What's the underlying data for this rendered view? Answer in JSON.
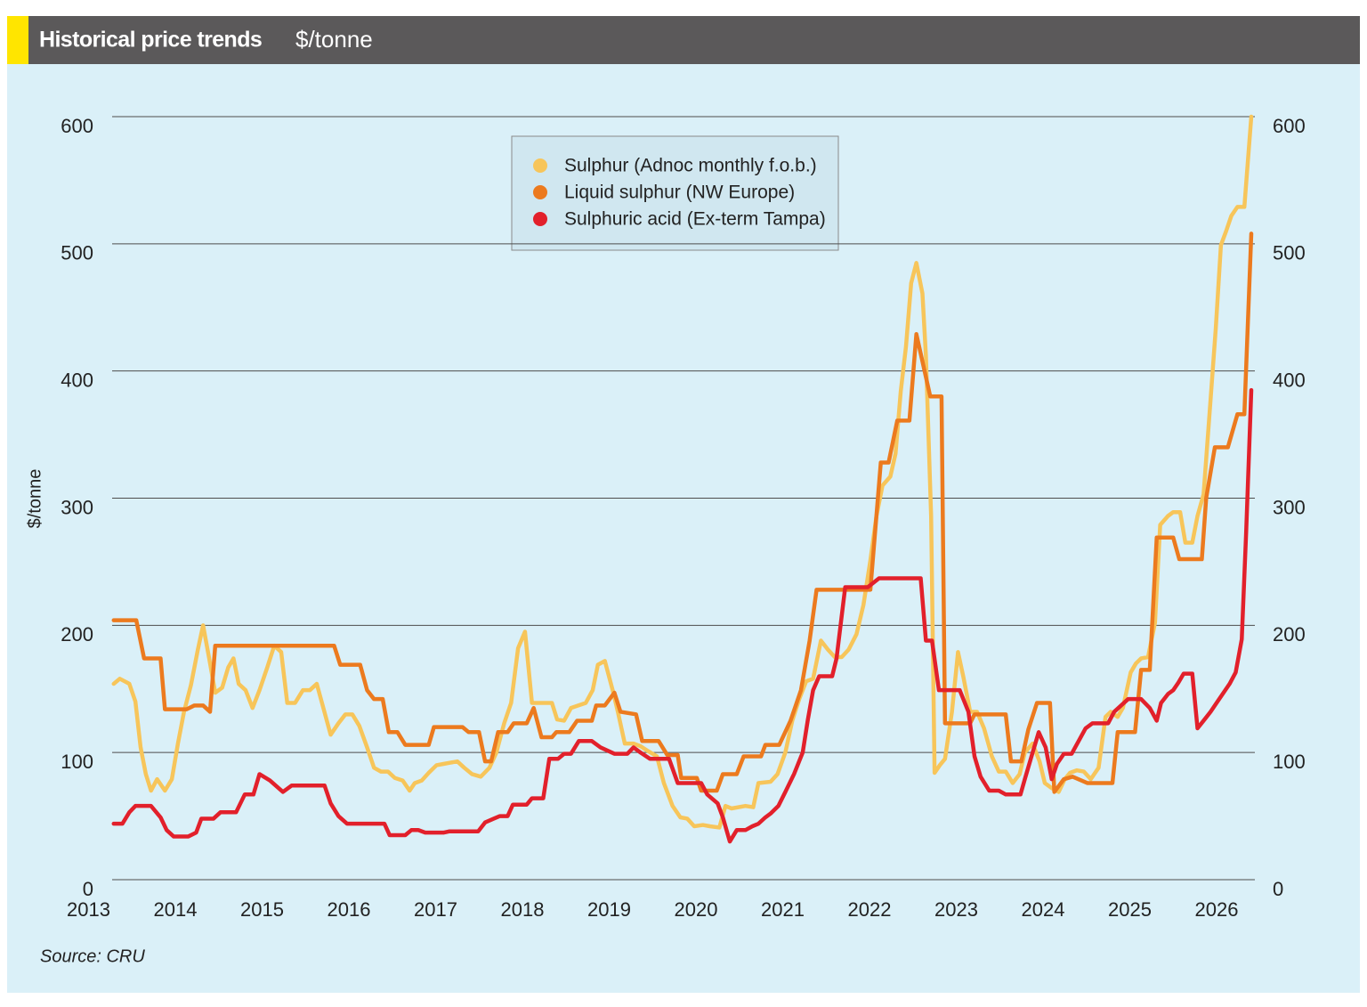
{
  "chart_data": {
    "type": "line",
    "title": "Historical price trends",
    "subtitle": "$/tonne",
    "y_label": "$/tonne",
    "source": "Source: CRU",
    "xlim": [
      2013,
      2026.5
    ],
    "xticks": [
      2013,
      2014,
      2015,
      2016,
      2017,
      2018,
      2019,
      2020,
      2021,
      2022,
      2023,
      2024,
      2025,
      2026
    ],
    "ylim": [
      0,
      600
    ],
    "yticks": [
      0,
      100,
      200,
      300,
      400,
      500,
      600
    ],
    "y2lim": [
      0,
      600
    ],
    "y2ticks": [
      0,
      100,
      200,
      300,
      400,
      500,
      600
    ],
    "grid": true,
    "legend": "top",
    "series": [
      {
        "name": "Sulphur (Adnoc monthly f.o.b.)",
        "color": "#f7c55a",
        "x": [
          2013.29,
          2013.36,
          2013.47,
          2013.54,
          2013.6,
          2013.66,
          2013.72,
          2013.79,
          2013.88,
          2013.96,
          2014.03,
          2014.1,
          2014.18,
          2014.26,
          2014.32,
          2014.39,
          2014.46,
          2014.54,
          2014.61,
          2014.67,
          2014.73,
          2014.81,
          2014.89,
          2014.97,
          2015.06,
          2015.14,
          2015.22,
          2015.29,
          2015.38,
          2015.47,
          2015.55,
          2015.63,
          2015.69,
          2015.79,
          2015.88,
          2015.96,
          2016.04,
          2016.12,
          2016.21,
          2016.29,
          2016.37,
          2016.45,
          2016.53,
          2016.62,
          2016.7,
          2016.76,
          2016.84,
          2016.92,
          2017.01,
          2017.09,
          2017.17,
          2017.25,
          2017.33,
          2017.42,
          2017.52,
          2017.62,
          2017.7,
          2017.79,
          2017.87,
          2017.95,
          2018.03,
          2018.11,
          2018.34,
          2018.4,
          2018.48,
          2018.56,
          2018.73,
          2018.81,
          2018.87,
          2018.95,
          2019.04,
          2019.1,
          2019.18,
          2019.28,
          2019.36,
          2019.45,
          2019.55,
          2019.63,
          2019.73,
          2019.82,
          2019.9,
          2019.98,
          2020.08,
          2020.16,
          2020.27,
          2020.34,
          2020.41,
          2020.57,
          2020.66,
          2020.72,
          2020.86,
          2020.94,
          2021.03,
          2021.11,
          2021.19,
          2021.27,
          2021.35,
          2021.44,
          2021.52,
          2021.6,
          2021.68,
          2021.76,
          2021.85,
          2021.93,
          2022.01,
          2022.08,
          2022.15,
          2022.24,
          2022.3,
          2022.36,
          2022.42,
          2022.48,
          2022.54,
          2022.61,
          2022.65,
          2022.71,
          2022.75,
          2022.81,
          2022.87,
          2022.95,
          2023.02,
          2023.08,
          2023.16,
          2023.24,
          2023.32,
          2023.41,
          2023.49,
          2023.57,
          2023.65,
          2023.73,
          2023.79,
          2023.88,
          2023.96,
          2024.02,
          2024.1,
          2024.18,
          2024.25,
          2024.31,
          2024.39,
          2024.47,
          2024.55,
          2024.64,
          2024.72,
          2024.78,
          2024.86,
          2024.92,
          2025.01,
          2025.07,
          2025.13,
          2025.21,
          2025.29,
          2025.35,
          2025.44,
          2025.5,
          2025.58,
          2025.64,
          2025.72,
          2025.78,
          2025.85,
          2025.93,
          2025.99,
          2026.05,
          2026.11,
          2026.17,
          2026.24,
          2026.32,
          2026.4
        ],
        "values": [
          154,
          158,
          154,
          140,
          104,
          83,
          70,
          79,
          70,
          79,
          107,
          132,
          153,
          181,
          200,
          174,
          147,
          151,
          167,
          174,
          154,
          149,
          135,
          149,
          167,
          184,
          179,
          139,
          139,
          149,
          149,
          154,
          139,
          114,
          123,
          130,
          130,
          121,
          104,
          88,
          85,
          85,
          80,
          78,
          70,
          76,
          78,
          84,
          90,
          91,
          92,
          93,
          88,
          83,
          81,
          88,
          100,
          123,
          139,
          182,
          195,
          139,
          139,
          126,
          125,
          135,
          139,
          149,
          169,
          172,
          149,
          132,
          107,
          107,
          105,
          101,
          97,
          76,
          58,
          49,
          48,
          42,
          43,
          42,
          41,
          58,
          56,
          58,
          57,
          76,
          77,
          83,
          100,
          125,
          142,
          156,
          158,
          188,
          181,
          175,
          175,
          181,
          193,
          216,
          251,
          286,
          310,
          317,
          335,
          384,
          419,
          469,
          485,
          461,
          412,
          286,
          84,
          90,
          95,
          132,
          179,
          160,
          132,
          132,
          119,
          97,
          85,
          85,
          76,
          83,
          100,
          107,
          93,
          76,
          72,
          69,
          79,
          84,
          86,
          85,
          79,
          88,
          128,
          132,
          128,
          135,
          163,
          170,
          174,
          175,
          202,
          279,
          286,
          289,
          289,
          265,
          265,
          286,
          303,
          377,
          433,
          499,
          510,
          522,
          529,
          529,
          600
        ]
      },
      {
        "name": "Liquid sulphur (NW Europe)",
        "color": "#ec7a1e",
        "x": [
          2013.29,
          2013.55,
          2013.64,
          2013.83,
          2013.88,
          2014.13,
          2014.22,
          2014.32,
          2014.4,
          2014.46,
          2015.83,
          2015.9,
          2016.13,
          2016.21,
          2016.29,
          2016.39,
          2016.46,
          2016.56,
          2016.65,
          2016.92,
          2016.98,
          2017.31,
          2017.38,
          2017.5,
          2017.57,
          2017.64,
          2017.72,
          2017.83,
          2017.9,
          2018.05,
          2018.13,
          2018.22,
          2018.34,
          2018.39,
          2018.54,
          2018.63,
          2018.8,
          2018.85,
          2018.95,
          2019.06,
          2019.13,
          2019.31,
          2019.38,
          2019.57,
          2019.67,
          2019.79,
          2019.83,
          2020.01,
          2020.06,
          2020.24,
          2020.31,
          2020.47,
          2020.55,
          2020.75,
          2020.8,
          2020.96,
          2021.09,
          2021.21,
          2021.31,
          2021.39,
          2022.01,
          2022.13,
          2022.22,
          2022.32,
          2022.46,
          2022.54,
          2022.7,
          2022.83,
          2022.87,
          2023.16,
          2023.21,
          2023.57,
          2023.63,
          2023.75,
          2023.83,
          2023.93,
          2024.08,
          2024.13,
          2024.24,
          2024.34,
          2024.51,
          2024.8,
          2024.86,
          2025.06,
          2025.13,
          2025.23,
          2025.31,
          2025.5,
          2025.57,
          2025.83,
          2025.88,
          2025.98,
          2026.13,
          2026.24,
          2026.32,
          2026.4
        ],
        "values": [
          204,
          204,
          174,
          174,
          134,
          134,
          137,
          137,
          132,
          184,
          184,
          169,
          169,
          149,
          142,
          142,
          116,
          116,
          106,
          106,
          120,
          120,
          116,
          116,
          93,
          93,
          116,
          116,
          123,
          123,
          135,
          112,
          112,
          116,
          116,
          125,
          125,
          137,
          137,
          147,
          132,
          130,
          109,
          109,
          98,
          98,
          80,
          80,
          70,
          70,
          83,
          83,
          97,
          97,
          106,
          106,
          125,
          149,
          188,
          228,
          228,
          328,
          328,
          361,
          361,
          429,
          380,
          380,
          123,
          123,
          130,
          130,
          93,
          93,
          118,
          139,
          139,
          69,
          79,
          81,
          76,
          76,
          116,
          116,
          165,
          165,
          269,
          269,
          252,
          252,
          300,
          340,
          340,
          366,
          366,
          508
        ]
      },
      {
        "name": "Sulphuric acid (Ex-term Tampa)",
        "color": "#e2202b",
        "x": [
          2013.29,
          2013.39,
          2013.47,
          2013.54,
          2013.72,
          2013.83,
          2013.9,
          2013.98,
          2014.15,
          2014.24,
          2014.3,
          2014.44,
          2014.52,
          2014.7,
          2014.8,
          2014.9,
          2014.97,
          2015.09,
          2015.24,
          2015.34,
          2015.72,
          2015.79,
          2015.88,
          2015.98,
          2016.41,
          2016.47,
          2016.65,
          2016.72,
          2016.8,
          2016.88,
          2017.09,
          2017.16,
          2017.49,
          2017.57,
          2017.67,
          2017.74,
          2017.83,
          2017.89,
          2018.05,
          2018.11,
          2018.24,
          2018.31,
          2018.41,
          2018.48,
          2018.56,
          2018.65,
          2018.8,
          2018.9,
          2019.06,
          2019.21,
          2019.28,
          2019.36,
          2019.47,
          2019.69,
          2019.79,
          2020.06,
          2020.13,
          2020.25,
          2020.31,
          2020.39,
          2020.47,
          2020.57,
          2020.65,
          2020.72,
          2020.8,
          2020.86,
          2020.95,
          2021.03,
          2021.13,
          2021.23,
          2021.29,
          2021.35,
          2021.42,
          2021.57,
          2021.62,
          2021.72,
          2021.98,
          2022.11,
          2022.59,
          2022.65,
          2022.72,
          2022.8,
          2023.04,
          2023.14,
          2023.21,
          2023.28,
          2023.38,
          2023.49,
          2023.57,
          2023.74,
          2023.79,
          2023.88,
          2023.95,
          2024.03,
          2024.1,
          2024.16,
          2024.24,
          2024.33,
          2024.41,
          2024.49,
          2024.57,
          2024.75,
          2024.82,
          2024.9,
          2024.98,
          2025.13,
          2025.23,
          2025.31,
          2025.36,
          2025.44,
          2025.5,
          2025.56,
          2025.62,
          2025.72,
          2025.78,
          2025.85,
          2025.93,
          2026.01,
          2026.08,
          2026.15,
          2026.22,
          2026.29,
          2026.34,
          2026.4
        ],
        "values": [
          44,
          44,
          53,
          58,
          58,
          49,
          39,
          34,
          34,
          37,
          48,
          48,
          53,
          53,
          67,
          67,
          83,
          78,
          69,
          74,
          74,
          60,
          50,
          44,
          44,
          35,
          35,
          39,
          39,
          37,
          37,
          38,
          38,
          45,
          48,
          50,
          50,
          59,
          59,
          64,
          64,
          95,
          95,
          99,
          99,
          109,
          109,
          104,
          99,
          99,
          104,
          100,
          95,
          95,
          76,
          76,
          67,
          60,
          49,
          30,
          39,
          39,
          42,
          44,
          49,
          52,
          58,
          69,
          83,
          100,
          126,
          149,
          160,
          160,
          174,
          230,
          230,
          237,
          237,
          188,
          188,
          149,
          149,
          132,
          97,
          81,
          70,
          70,
          67,
          67,
          79,
          100,
          116,
          104,
          79,
          91,
          99,
          99,
          109,
          119,
          123,
          123,
          132,
          137,
          142,
          142,
          135,
          125,
          139,
          146,
          149,
          155,
          162,
          162,
          119,
          125,
          132,
          140,
          147,
          154,
          163,
          189,
          272,
          385
        ]
      }
    ]
  }
}
